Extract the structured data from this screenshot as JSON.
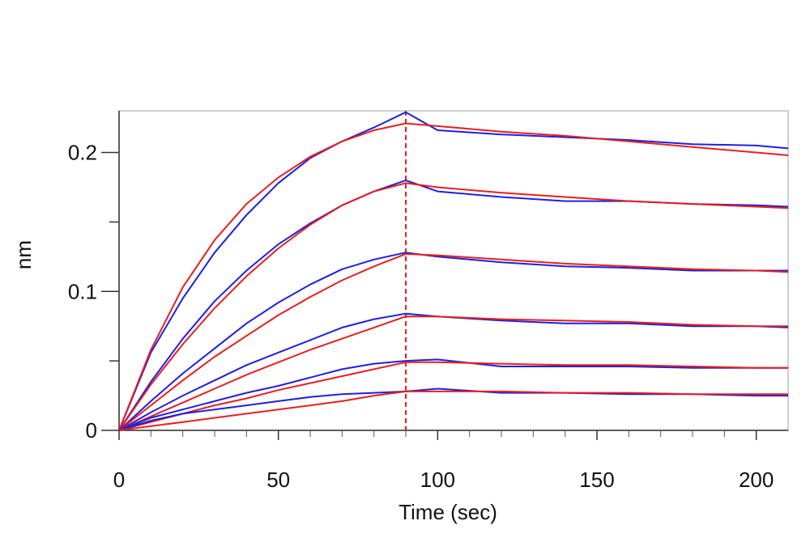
{
  "chart_data": {
    "type": "line",
    "title": "",
    "xlabel": "Time (sec)",
    "ylabel": "nm",
    "xlim": [
      0,
      210
    ],
    "ylim": [
      0,
      0.23
    ],
    "x_ticks": [
      0,
      50,
      100,
      150,
      200
    ],
    "x_tick_labels": [
      "0",
      "50",
      "100",
      "150",
      "200"
    ],
    "y_ticks": [
      0,
      0.1,
      0.2
    ],
    "y_tick_labels": [
      "0",
      "0.1",
      "0.2"
    ],
    "association_end": 90,
    "grid": false,
    "legend": "none",
    "colors": {
      "measured": "#1f1fe0",
      "fit": "#e81e1e",
      "marker": "#e81e1e",
      "frame": "#bfbfbf"
    },
    "series": [
      {
        "type": "measured",
        "x": [
          0,
          10,
          20,
          30,
          40,
          50,
          60,
          70,
          80,
          90,
          100,
          120,
          140,
          160,
          180,
          200,
          210
        ],
        "values": [
          0,
          0.056,
          0.095,
          0.128,
          0.155,
          0.178,
          0.196,
          0.208,
          0.218,
          0.229,
          0.216,
          0.213,
          0.211,
          0.209,
          0.206,
          0.205,
          0.203
        ]
      },
      {
        "type": "fit",
        "x": [
          0,
          10,
          20,
          30,
          40,
          50,
          60,
          70,
          80,
          90,
          100,
          120,
          140,
          160,
          180,
          200,
          210
        ],
        "values": [
          0,
          0.058,
          0.103,
          0.137,
          0.163,
          0.182,
          0.197,
          0.208,
          0.216,
          0.221,
          0.219,
          0.215,
          0.212,
          0.208,
          0.204,
          0.2,
          0.198
        ]
      },
      {
        "type": "measured",
        "x": [
          0,
          10,
          20,
          30,
          40,
          50,
          60,
          70,
          80,
          90,
          100,
          120,
          140,
          160,
          180,
          200,
          210
        ],
        "values": [
          0,
          0.035,
          0.066,
          0.093,
          0.115,
          0.134,
          0.149,
          0.162,
          0.172,
          0.18,
          0.172,
          0.168,
          0.165,
          0.165,
          0.163,
          0.162,
          0.161
        ]
      },
      {
        "type": "fit",
        "x": [
          0,
          10,
          20,
          30,
          40,
          50,
          60,
          70,
          80,
          90,
          100,
          120,
          140,
          160,
          180,
          200,
          210
        ],
        "values": [
          0,
          0.033,
          0.062,
          0.088,
          0.111,
          0.131,
          0.148,
          0.162,
          0.172,
          0.178,
          0.175,
          0.171,
          0.168,
          0.165,
          0.163,
          0.161,
          0.16
        ]
      },
      {
        "type": "measured",
        "x": [
          0,
          10,
          20,
          30,
          40,
          50,
          60,
          70,
          80,
          90,
          100,
          120,
          140,
          160,
          180,
          200,
          210
        ],
        "values": [
          0,
          0.021,
          0.041,
          0.059,
          0.077,
          0.092,
          0.105,
          0.116,
          0.123,
          0.128,
          0.125,
          0.121,
          0.118,
          0.117,
          0.115,
          0.115,
          0.115
        ]
      },
      {
        "type": "fit",
        "x": [
          0,
          10,
          20,
          30,
          40,
          50,
          60,
          70,
          80,
          90,
          100,
          120,
          140,
          160,
          180,
          200,
          210
        ],
        "values": [
          0,
          0.018,
          0.036,
          0.053,
          0.068,
          0.083,
          0.096,
          0.108,
          0.118,
          0.127,
          0.126,
          0.123,
          0.12,
          0.118,
          0.116,
          0.115,
          0.114
        ]
      },
      {
        "type": "measured",
        "x": [
          0,
          10,
          20,
          30,
          40,
          50,
          60,
          70,
          80,
          90,
          100,
          120,
          140,
          160,
          180,
          200,
          210
        ],
        "values": [
          0,
          0.013,
          0.025,
          0.036,
          0.047,
          0.056,
          0.065,
          0.074,
          0.08,
          0.084,
          0.082,
          0.079,
          0.077,
          0.077,
          0.075,
          0.075,
          0.074
        ]
      },
      {
        "type": "fit",
        "x": [
          0,
          10,
          20,
          30,
          40,
          50,
          60,
          70,
          80,
          90,
          100,
          120,
          140,
          160,
          180,
          200,
          210
        ],
        "values": [
          0,
          0.01,
          0.02,
          0.03,
          0.04,
          0.049,
          0.058,
          0.066,
          0.074,
          0.082,
          0.082,
          0.08,
          0.079,
          0.078,
          0.076,
          0.075,
          0.075
        ]
      },
      {
        "type": "measured",
        "x": [
          0,
          10,
          20,
          30,
          40,
          50,
          60,
          70,
          80,
          90,
          100,
          120,
          140,
          160,
          180,
          200,
          210
        ],
        "values": [
          0,
          0.009,
          0.015,
          0.021,
          0.027,
          0.032,
          0.038,
          0.044,
          0.048,
          0.05,
          0.051,
          0.046,
          0.046,
          0.046,
          0.045,
          0.045,
          0.045
        ]
      },
      {
        "type": "fit",
        "x": [
          0,
          10,
          20,
          30,
          40,
          50,
          60,
          70,
          80,
          90,
          100,
          120,
          140,
          160,
          180,
          200,
          210
        ],
        "values": [
          0,
          0.006,
          0.012,
          0.018,
          0.023,
          0.029,
          0.034,
          0.039,
          0.044,
          0.049,
          0.049,
          0.048,
          0.047,
          0.047,
          0.046,
          0.045,
          0.045
        ]
      },
      {
        "type": "measured",
        "x": [
          0,
          10,
          20,
          30,
          40,
          50,
          60,
          70,
          80,
          90,
          100,
          120,
          140,
          160,
          180,
          200,
          210
        ],
        "values": [
          0,
          0.007,
          0.012,
          0.015,
          0.018,
          0.021,
          0.024,
          0.026,
          0.027,
          0.028,
          0.03,
          0.027,
          0.027,
          0.026,
          0.026,
          0.025,
          0.025
        ]
      },
      {
        "type": "fit",
        "x": [
          0,
          10,
          20,
          30,
          40,
          50,
          60,
          70,
          80,
          90,
          100,
          120,
          140,
          160,
          180,
          200,
          210
        ],
        "values": [
          0,
          0.003,
          0.006,
          0.009,
          0.012,
          0.015,
          0.018,
          0.021,
          0.025,
          0.028,
          0.028,
          0.028,
          0.027,
          0.027,
          0.026,
          0.026,
          0.026
        ]
      }
    ]
  }
}
